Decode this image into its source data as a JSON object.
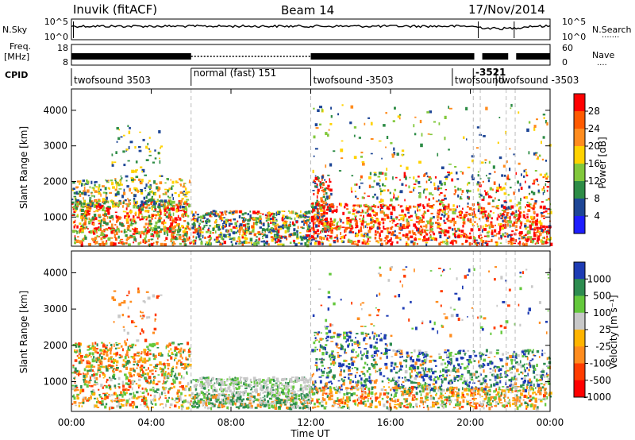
{
  "header": {
    "station": "Inuvik (fitACF)",
    "beam": "Beam 14",
    "date": "17/Nov/2014"
  },
  "time_axis": {
    "ticks": [
      "00:00",
      "04:00",
      "08:00",
      "12:00",
      "16:00",
      "20:00",
      "00:00"
    ],
    "label": "Time UT",
    "range_hours": [
      0,
      24
    ]
  },
  "noise_panel": {
    "left_label": "N.Sky",
    "right_label": "N.Search",
    "right_legend": "·······",
    "left_ticks": [
      "10^5",
      "10^0"
    ],
    "right_ticks": [
      "10^5",
      "10^0"
    ]
  },
  "freq_panel": {
    "left_label_1": "Freq.",
    "left_label_2": "[MHz]",
    "right_label": "Nave",
    "right_legend": "····",
    "left_ticks": [
      "18",
      "8"
    ],
    "right_ticks": [
      "60",
      "0"
    ]
  },
  "cpid_panel": {
    "label": "CPID",
    "segments": [
      {
        "start": 0.0,
        "end": 6.0,
        "text": "twofsound 3503"
      },
      {
        "start": 6.0,
        "end": 12.0,
        "text": "normal (fast) 151"
      },
      {
        "start": 12.0,
        "end": 19.1,
        "text": "twofsound -3503"
      },
      {
        "start": 19.1,
        "end": 20.15,
        "text": "twofsound"
      },
      {
        "start": 20.15,
        "end": 21.3,
        "text": "-3521"
      },
      {
        "start": 21.3,
        "end": 24.0,
        "text": "twofsound -3503"
      }
    ],
    "overlap_text": "-3521"
  },
  "chart_data": [
    {
      "type": "heatmap",
      "title": "",
      "xlabel": "",
      "ylabel": "Slant Range [km]",
      "ylim": [
        180,
        4600
      ],
      "y_ticks": [
        "4000",
        "3000",
        "2000",
        "1000"
      ],
      "colorbar": {
        "label": "Power [dB]",
        "ticks": [
          "28",
          "24",
          "20",
          "16",
          "12",
          "8",
          "4"
        ],
        "colors": [
          "#ff0000",
          "#ff5a00",
          "#ff8c1e",
          "#ffd200",
          "#82c83c",
          "#2d8c46",
          "#1e4696",
          "#1e1eff"
        ]
      },
      "description_regions": [
        {
          "t": [
            0.0,
            6.0
          ],
          "range_km": [
            300,
            2100
          ],
          "dominant": "red/orange/green"
        },
        {
          "t": [
            6.0,
            12.0
          ],
          "range_km": [
            250,
            1200
          ],
          "dominant": "blue/green/orange"
        },
        {
          "t": [
            12.0,
            24.0
          ],
          "range_km": [
            250,
            2200
          ],
          "dominant": "red/orange"
        }
      ]
    },
    {
      "type": "heatmap",
      "title": "",
      "xlabel": "Time UT",
      "ylabel": "Slant Range [km]",
      "ylim": [
        180,
        4600
      ],
      "y_ticks": [
        "4000",
        "3000",
        "2000",
        "1000"
      ],
      "colorbar": {
        "label": "Velocity [m s⁻¹]",
        "ticks": [
          "1000",
          "500",
          "100",
          "25",
          "-25",
          "-100",
          "-500",
          "-1000"
        ],
        "colors": [
          "#1e3cb4",
          "#2d8c50",
          "#64c83c",
          "#c8c8c8",
          "#ffb400",
          "#ff8c1e",
          "#ff3c00",
          "#ff0000"
        ]
      },
      "description_regions": [
        {
          "t": [
            0.0,
            6.0
          ],
          "range_km": [
            300,
            2100
          ],
          "dominant": "orange/green"
        },
        {
          "t": [
            6.0,
            12.0
          ],
          "range_km": [
            300,
            1200
          ],
          "dominant": "grey/green"
        },
        {
          "t": [
            12.0,
            24.0
          ],
          "range_km": [
            300,
            2300
          ],
          "dominant": "blue/green/orange"
        }
      ]
    }
  ]
}
